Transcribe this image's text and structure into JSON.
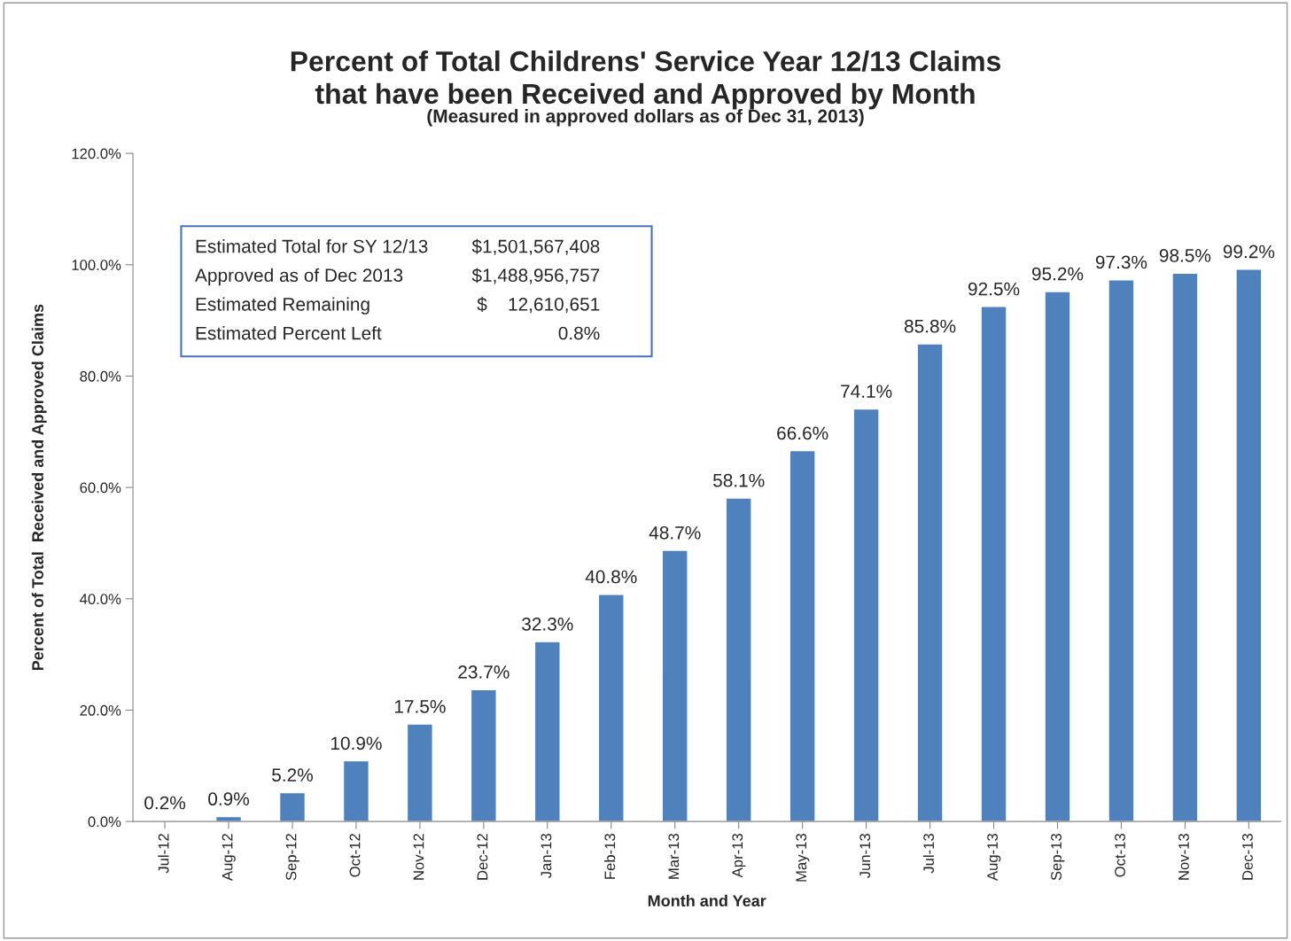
{
  "chart_data": {
    "type": "bar",
    "title": "Percent of Total Childrens' Service Year 12/13 Claims\nthat have been Received and Approved by Month",
    "subtitle": "(Measured in approved dollars as of Dec 31, 2013)",
    "xlabel": "Month and Year",
    "ylabel": "Percent of Total  Received and Approved Claims",
    "categories": [
      "Jul-12",
      "Aug-12",
      "Sep-12",
      "Oct-12",
      "Nov-12",
      "Dec-12",
      "Jan-13",
      "Feb-13",
      "Mar-13",
      "Apr-13",
      "May-13",
      "Jun-13",
      "Jul-13",
      "Aug-13",
      "Sep-13",
      "Oct-13",
      "Nov-13",
      "Dec-13"
    ],
    "values": [
      0.2,
      0.9,
      5.2,
      10.9,
      17.5,
      23.7,
      32.3,
      40.8,
      48.7,
      58.1,
      66.6,
      74.1,
      85.8,
      92.5,
      95.2,
      97.3,
      98.5,
      99.2
    ],
    "value_labels": [
      "0.2%",
      "0.9%",
      "5.2%",
      "10.9%",
      "17.5%",
      "23.7%",
      "32.3%",
      "40.8%",
      "48.7%",
      "58.1%",
      "66.6%",
      "74.1%",
      "85.8%",
      "92.5%",
      "95.2%",
      "97.3%",
      "98.5%",
      "99.2%"
    ],
    "color": "#4f81bd",
    "ylim": [
      0,
      120
    ],
    "yticks": [
      {
        "value": 0,
        "label": "0.0%"
      },
      {
        "value": 20,
        "label": "20.0%"
      },
      {
        "value": 40,
        "label": "40.0%"
      },
      {
        "value": 60,
        "label": "60.0%"
      },
      {
        "value": 80,
        "label": "80.0%"
      },
      {
        "value": 100,
        "label": "100.0%"
      },
      {
        "value": 120,
        "label": "120.0%"
      }
    ],
    "annotations": [
      "Estimated Total for SY 12/13",
      "$1,501,567,408",
      "Approved as of Dec 2013",
      "$1,488,956,757",
      "Estimated Remaining",
      "$    12,610,651",
      "Estimated Percent Left",
      "0.8%"
    ],
    "grid": false,
    "legend": false
  }
}
